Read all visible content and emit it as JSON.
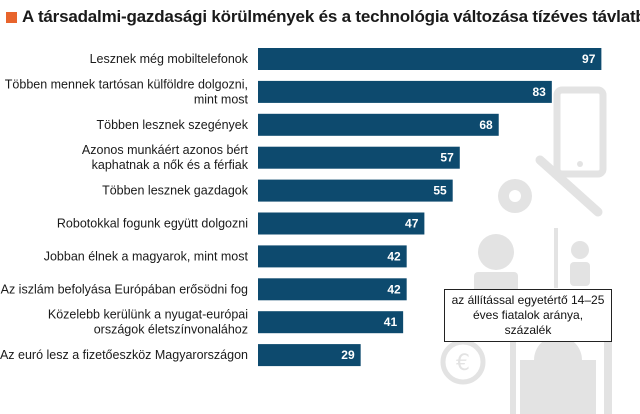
{
  "title": "A társadalmi-gazdasági körülmények és a technológia változása tízéves távlatban",
  "legend_note": "az állítással egyetértő 14–25 éves fiatalok aránya, százalék",
  "colors": {
    "bar": "#0d4a6e",
    "accent": "#e8642c",
    "text": "#1a1a1a",
    "icons": "#e3e3e3"
  },
  "chart_data": {
    "type": "bar",
    "orientation": "horizontal",
    "categories": [
      [
        "Lesznek még mobiltelefonok"
      ],
      [
        "Többen mennek tartósan külföldre dolgozni,",
        "mint most"
      ],
      [
        "Többen lesznek szegények"
      ],
      [
        "Azonos munkáért azonos bért",
        "kaphatnak a nők és a férfiak"
      ],
      [
        "Többen lesznek gazdagok"
      ],
      [
        "Robotokkal fogunk együtt dolgozni"
      ],
      [
        "Jobban élnek a magyarok, mint most"
      ],
      [
        "Az iszlám befolyása Európában erősödni fog"
      ],
      [
        "Közelebb kerülünk a nyugat-európai",
        "országok életszínvonalához"
      ],
      [
        "Az euró lesz a fizetőeszköz Magyarországon"
      ]
    ],
    "values": [
      97,
      83,
      68,
      57,
      55,
      47,
      42,
      42,
      41,
      29
    ],
    "xlim": [
      0,
      100
    ],
    "grid": false
  }
}
